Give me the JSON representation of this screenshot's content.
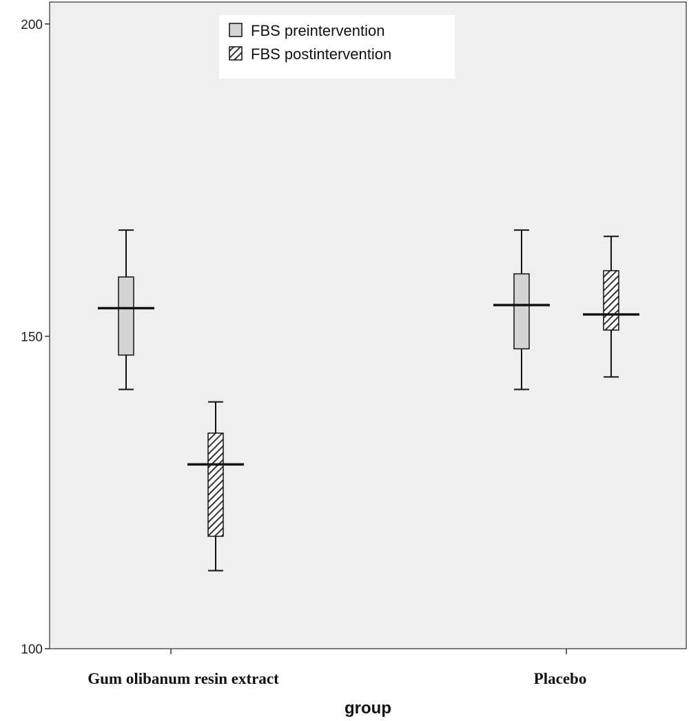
{
  "chart_data": {
    "type": "boxplot",
    "title": "",
    "xlabel": "group",
    "ylabel": "",
    "ylim": [
      100,
      203.5
    ],
    "yticks": [
      100,
      150,
      200
    ],
    "categories": [
      "Gum olibanum resin extract",
      "Placebo"
    ],
    "series": [
      {
        "name": "FBS preintervention",
        "fill": "solid-grey",
        "boxes": [
          {
            "min": 141.5,
            "q1": 147,
            "median": 154.5,
            "q3": 159.5,
            "max": 167
          },
          {
            "min": 141.5,
            "q1": 148,
            "median": 155,
            "q3": 160,
            "max": 167
          }
        ]
      },
      {
        "name": "FBS postintervention",
        "fill": "hatched",
        "boxes": [
          {
            "min": 112.5,
            "q1": 118,
            "median": 129.5,
            "q3": 134.5,
            "max": 139.5
          },
          {
            "min": 143.5,
            "q1": 151,
            "median": 153.5,
            "q3": 160.5,
            "max": 166
          }
        ]
      }
    ],
    "legend_position": "top-center",
    "grid": false,
    "colors": {
      "plot_bg": "#efefef",
      "box_fill": "#d4d4d4",
      "hatch_bg": "#ffffff",
      "hatch_line": "#333333",
      "stroke": "#111111"
    }
  }
}
